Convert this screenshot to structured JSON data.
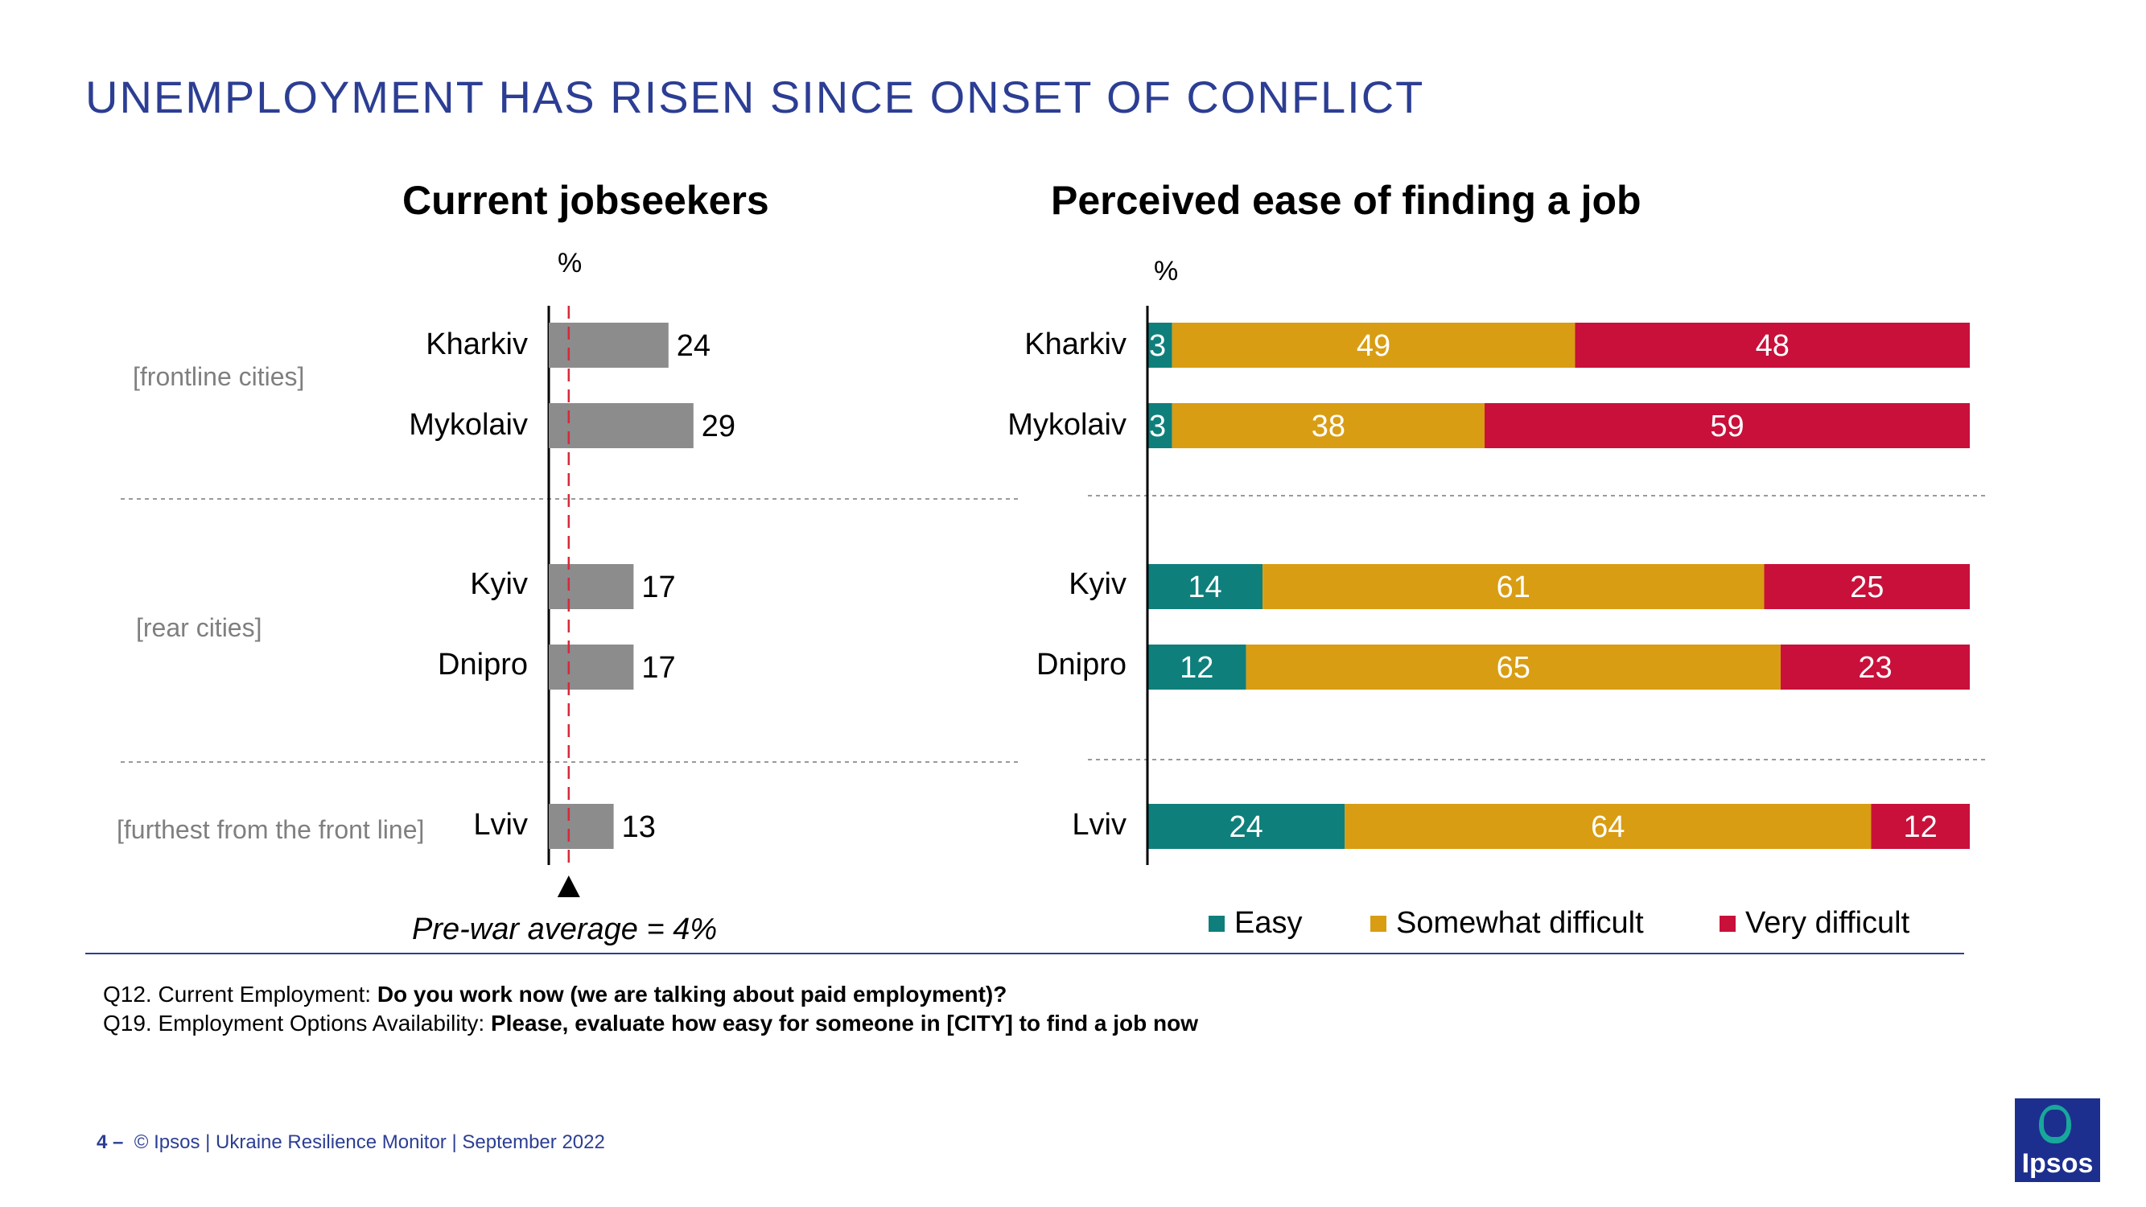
{
  "title": "UNEMPLOYMENT HAS RISEN SINCE ONSET OF CONFLICT",
  "group_labels": {
    "frontline": "[frontline cities]",
    "rear": "[rear cities]",
    "furthest": "[furthest from the front line]"
  },
  "pre_war_label": "Pre-war average = 4%",
  "question_notes": [
    {
      "prefix": "Q12. Current Employment: ",
      "question": "Do you work now (we are talking about paid employment)?"
    },
    {
      "prefix": "Q19. Employment Options Availability: ",
      "question": "Please, evaluate how easy for someone in [CITY] to find a job now"
    }
  ],
  "footer": {
    "page_number": "4",
    "dash": "–",
    "source": "© Ipsos | Ukraine Resilience Monitor | September 2022"
  },
  "logo_text": "Ipsos",
  "colors": {
    "title_blue": "#2c3e93",
    "bar_gray": "#8c8c8c",
    "easy": "#0f7f7b",
    "somewhat_difficult": "#d99d13",
    "very_difficult": "#c8103a",
    "reference_line": "#d62839",
    "logo_bg": "#1d2f8e",
    "logo_accent": "#18a89b"
  },
  "chart_data": [
    {
      "type": "bar",
      "orientation": "horizontal",
      "title": "Current jobseekers",
      "unit_label": "%",
      "categories": [
        "Kharkiv",
        "Mykolaiv",
        "Kyiv",
        "Dnipro",
        "Lviv"
      ],
      "values": [
        24,
        29,
        17,
        17,
        13
      ],
      "groups": [
        {
          "label": "[frontline cities]",
          "categories": [
            "Kharkiv",
            "Mykolaiv"
          ]
        },
        {
          "label": "[rear cities]",
          "categories": [
            "Kyiv",
            "Dnipro"
          ]
        },
        {
          "label": "[furthest from the front line]",
          "categories": [
            "Lviv"
          ]
        }
      ],
      "reference_line": {
        "value": 4,
        "label": "Pre-war average = 4%"
      },
      "xlim": [
        0,
        35
      ]
    },
    {
      "type": "bar",
      "orientation": "horizontal",
      "stacked": true,
      "title": "Perceived ease of finding a job",
      "unit_label": "%",
      "categories": [
        "Kharkiv",
        "Mykolaiv",
        "Kyiv",
        "Dnipro",
        "Lviv"
      ],
      "series": [
        {
          "name": "Easy",
          "values": [
            3,
            3,
            14,
            12,
            24
          ]
        },
        {
          "name": "Somewhat difficult",
          "values": [
            49,
            38,
            61,
            65,
            64
          ]
        },
        {
          "name": "Very difficult",
          "values": [
            48,
            59,
            25,
            23,
            12
          ]
        }
      ],
      "xlim": [
        0,
        100
      ],
      "legend": "bottom"
    }
  ]
}
